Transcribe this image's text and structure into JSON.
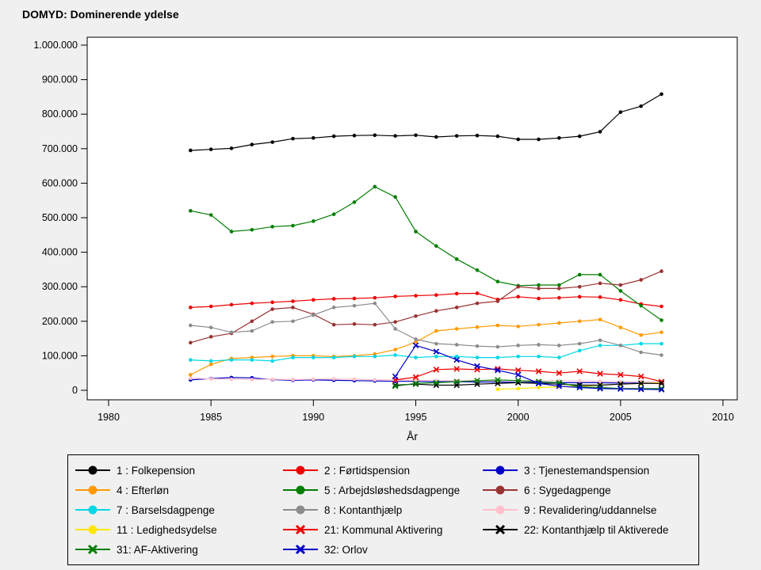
{
  "title": "DOMYD: Dominerende ydelse",
  "colors": {
    "background": "#f0f0f0",
    "plot_background": "#ffffff",
    "axis": "#000000"
  },
  "chart_data": {
    "type": "line",
    "title": "DOMYD: Dominerende ydelse",
    "xlabel": "År",
    "ylabel": "",
    "xlim": [
      1979,
      2010.7
    ],
    "ylim": [
      0,
      1000000
    ],
    "x_ticks": [
      1980,
      1985,
      1990,
      1995,
      2000,
      2005,
      2010
    ],
    "y_ticks": [
      0,
      100000,
      200000,
      300000,
      400000,
      500000,
      600000,
      700000,
      800000,
      900000,
      1000000
    ],
    "grid": false,
    "legend_position": "bottom",
    "x": [
      1984,
      1985,
      1986,
      1987,
      1988,
      1989,
      1990,
      1991,
      1992,
      1993,
      1994,
      1995,
      1996,
      1997,
      1998,
      1999,
      2000,
      2001,
      2002,
      2003,
      2004,
      2005,
      2006,
      2007
    ],
    "series": [
      {
        "id": "1",
        "label": "1 : Folkepension",
        "color": "#000000",
        "marker": "dot",
        "values": [
          695000,
          698000,
          701000,
          712000,
          719000,
          729000,
          731000,
          736000,
          738000,
          739000,
          737000,
          739000,
          734000,
          737000,
          738000,
          736000,
          727000,
          727000,
          731000,
          736000,
          749000,
          806000,
          823000,
          858000
        ]
      },
      {
        "id": "2",
        "label": "2 : Førtidspension",
        "color": "#ee0000",
        "marker": "dot",
        "values": [
          240000,
          243000,
          248000,
          252000,
          255000,
          258000,
          262000,
          265000,
          266000,
          268000,
          272000,
          274000,
          276000,
          280000,
          281000,
          263000,
          271000,
          266000,
          268000,
          271000,
          270000,
          262000,
          250000,
          243000
        ]
      },
      {
        "id": "3",
        "label": "3 : Tjenestemandspension",
        "color": "#0000c8",
        "marker": "dot",
        "values": [
          30000,
          34000,
          37000,
          36000,
          31000,
          29000,
          30000,
          29000,
          28000,
          27000,
          26000,
          26000,
          25000,
          25000,
          24000,
          24000,
          23000,
          23000,
          22000,
          22000,
          22000,
          21000,
          21000,
          21000
        ]
      },
      {
        "id": "4",
        "label": "4 : Efterløn",
        "color": "#ff9900",
        "marker": "dot",
        "values": [
          45000,
          75000,
          92000,
          95000,
          98000,
          100000,
          100000,
          98000,
          100000,
          105000,
          118000,
          140000,
          172000,
          178000,
          183000,
          188000,
          185000,
          190000,
          195000,
          200000,
          205000,
          182000,
          160000,
          168000
        ]
      },
      {
        "id": "5",
        "label": "5 : Arbejdsløshedsdagpenge",
        "color": "#007d00",
        "marker": "dot",
        "values": [
          520000,
          508000,
          460000,
          465000,
          474000,
          477000,
          490000,
          510000,
          545000,
          590000,
          560000,
          460000,
          418000,
          380000,
          348000,
          315000,
          303000,
          305000,
          305000,
          335000,
          335000,
          288000,
          245000,
          203000
        ]
      },
      {
        "id": "6",
        "label": "6 : Sygedagpenge",
        "color": "#993333",
        "marker": "dot",
        "values": [
          138000,
          155000,
          165000,
          200000,
          235000,
          240000,
          220000,
          190000,
          192000,
          190000,
          198000,
          215000,
          230000,
          240000,
          252000,
          258000,
          300000,
          295000,
          295000,
          300000,
          310000,
          305000,
          320000,
          345000
        ]
      },
      {
        "id": "7",
        "label": "7 : Barselsdagpenge",
        "color": "#00d8e6",
        "marker": "dot",
        "values": [
          88000,
          85000,
          88000,
          88000,
          85000,
          95000,
          95000,
          95000,
          98000,
          98000,
          102000,
          95000,
          98000,
          98000,
          95000,
          95000,
          98000,
          98000,
          95000,
          115000,
          130000,
          130000,
          135000,
          135000
        ]
      },
      {
        "id": "8",
        "label": "8 : Kontanthjælp",
        "color": "#8c8c8c",
        "marker": "dot",
        "values": [
          188000,
          182000,
          168000,
          172000,
          198000,
          200000,
          218000,
          240000,
          245000,
          252000,
          178000,
          148000,
          135000,
          132000,
          128000,
          126000,
          130000,
          132000,
          130000,
          135000,
          145000,
          130000,
          110000,
          102000
        ]
      },
      {
        "id": "9",
        "label": "9 : Revalidering/uddannelse",
        "color": "#ffc0cb",
        "marker": "dot",
        "values": [
          35000,
          33000,
          32000,
          31000,
          32000,
          31000,
          32000,
          33000,
          32000,
          30000,
          30000,
          29000,
          28000,
          28000,
          28000,
          28000,
          28000,
          28000,
          28000,
          27000,
          26000,
          25000,
          25000,
          25000
        ]
      },
      {
        "id": "11",
        "label": "11 : Ledighedsydelse",
        "color": "#ffe600",
        "marker": "dot",
        "values": [
          null,
          null,
          null,
          null,
          null,
          null,
          null,
          null,
          null,
          null,
          null,
          null,
          null,
          null,
          null,
          3000,
          5000,
          8000,
          10000,
          12000,
          15000,
          18000,
          20000,
          22000
        ]
      },
      {
        "id": "21",
        "label": "21: Kommunal Aktivering",
        "color": "#ee0000",
        "marker": "x",
        "values": [
          null,
          null,
          null,
          null,
          null,
          null,
          null,
          null,
          null,
          null,
          30000,
          38000,
          60000,
          62000,
          60000,
          62000,
          58000,
          55000,
          50000,
          55000,
          48000,
          45000,
          40000,
          25000
        ]
      },
      {
        "id": "22",
        "label": "22: Kontanthjælp til Aktiverede",
        "color": "#000000",
        "marker": "x",
        "values": [
          null,
          null,
          null,
          null,
          null,
          null,
          null,
          null,
          null,
          null,
          15000,
          18000,
          15000,
          15000,
          18000,
          20000,
          22000,
          20000,
          18000,
          15000,
          15000,
          18000,
          20000,
          20000
        ]
      },
      {
        "id": "31",
        "label": "31: AF-Aktivering",
        "color": "#007d00",
        "marker": "x",
        "values": [
          null,
          null,
          null,
          null,
          null,
          null,
          null,
          null,
          null,
          null,
          12000,
          20000,
          22000,
          25000,
          28000,
          30000,
          28000,
          25000,
          22000,
          10000,
          8000,
          5000,
          5000,
          5000
        ]
      },
      {
        "id": "32",
        "label": "32: Orlov",
        "color": "#0000c8",
        "marker": "x",
        "values": [
          null,
          null,
          null,
          null,
          null,
          null,
          null,
          null,
          null,
          null,
          40000,
          130000,
          112000,
          88000,
          70000,
          58000,
          45000,
          20000,
          12000,
          8000,
          5000,
          4000,
          3000,
          2000
        ]
      }
    ]
  }
}
